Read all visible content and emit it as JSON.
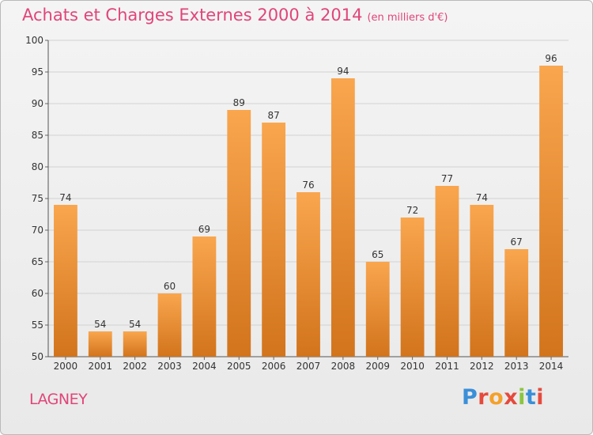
{
  "header": {
    "title": "Achats et Charges Externes 2000 à 2014",
    "unit": "(en milliers d'€)"
  },
  "footer": {
    "commune": "LAGNEY",
    "logo_letters": [
      "P",
      "r",
      "o",
      "x",
      "i",
      "t",
      "i"
    ],
    "logo_colors": [
      "#3a8fd8",
      "#e54a3c",
      "#f4a12a",
      "#e54a3c",
      "#8cc53f",
      "#3a8fd8",
      "#e54a3c"
    ]
  },
  "chart_data": {
    "type": "bar",
    "title": "Achats et Charges Externes 2000 à 2014",
    "subtitle": "(en milliers d'€)",
    "categories": [
      "2000",
      "2001",
      "2002",
      "2003",
      "2004",
      "2005",
      "2006",
      "2007",
      "2008",
      "2009",
      "2010",
      "2011",
      "2012",
      "2013",
      "2014"
    ],
    "values": [
      74,
      54,
      54,
      60,
      69,
      89,
      87,
      76,
      94,
      65,
      72,
      77,
      74,
      67,
      96
    ],
    "ylim": [
      50,
      100
    ],
    "yticks": [
      50,
      55,
      60,
      65,
      70,
      75,
      80,
      85,
      90,
      95,
      100
    ],
    "grid": true,
    "bar_color_top": "#f9a64f",
    "bar_color_bottom": "#d2741c"
  }
}
